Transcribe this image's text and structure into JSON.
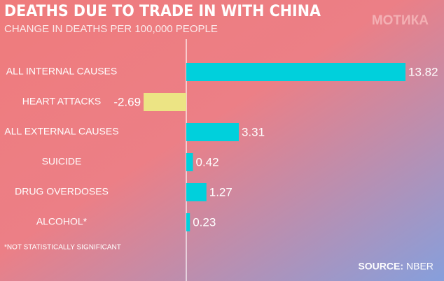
{
  "chart_data": {
    "type": "hbar",
    "title": "DEATHS DUE TO TRADE IN WITH CHINA",
    "subtitle": "CHANGE IN DEATHS PER 100,000 PEOPLE",
    "categories": [
      "ALL INTERNAL CAUSES",
      "HEART ATTACKS",
      "ALL EXTERNAL CAUSES",
      "SUICIDE",
      "DRUG OVERDOSES",
      "ALCOHOL*"
    ],
    "values": [
      13.82,
      -2.69,
      3.31,
      0.42,
      1.27,
      0.23
    ],
    "colors": [
      "#00d0dc",
      "#ece484",
      "#00d0dc",
      "#00d0dc",
      "#00d0dc",
      "#00d0dc"
    ],
    "footnote": "*NOT STATISTICALLY SIGNIFICANT",
    "source_label": "SOURCE:",
    "source": "NBER",
    "watermark": "МОТИКА"
  }
}
